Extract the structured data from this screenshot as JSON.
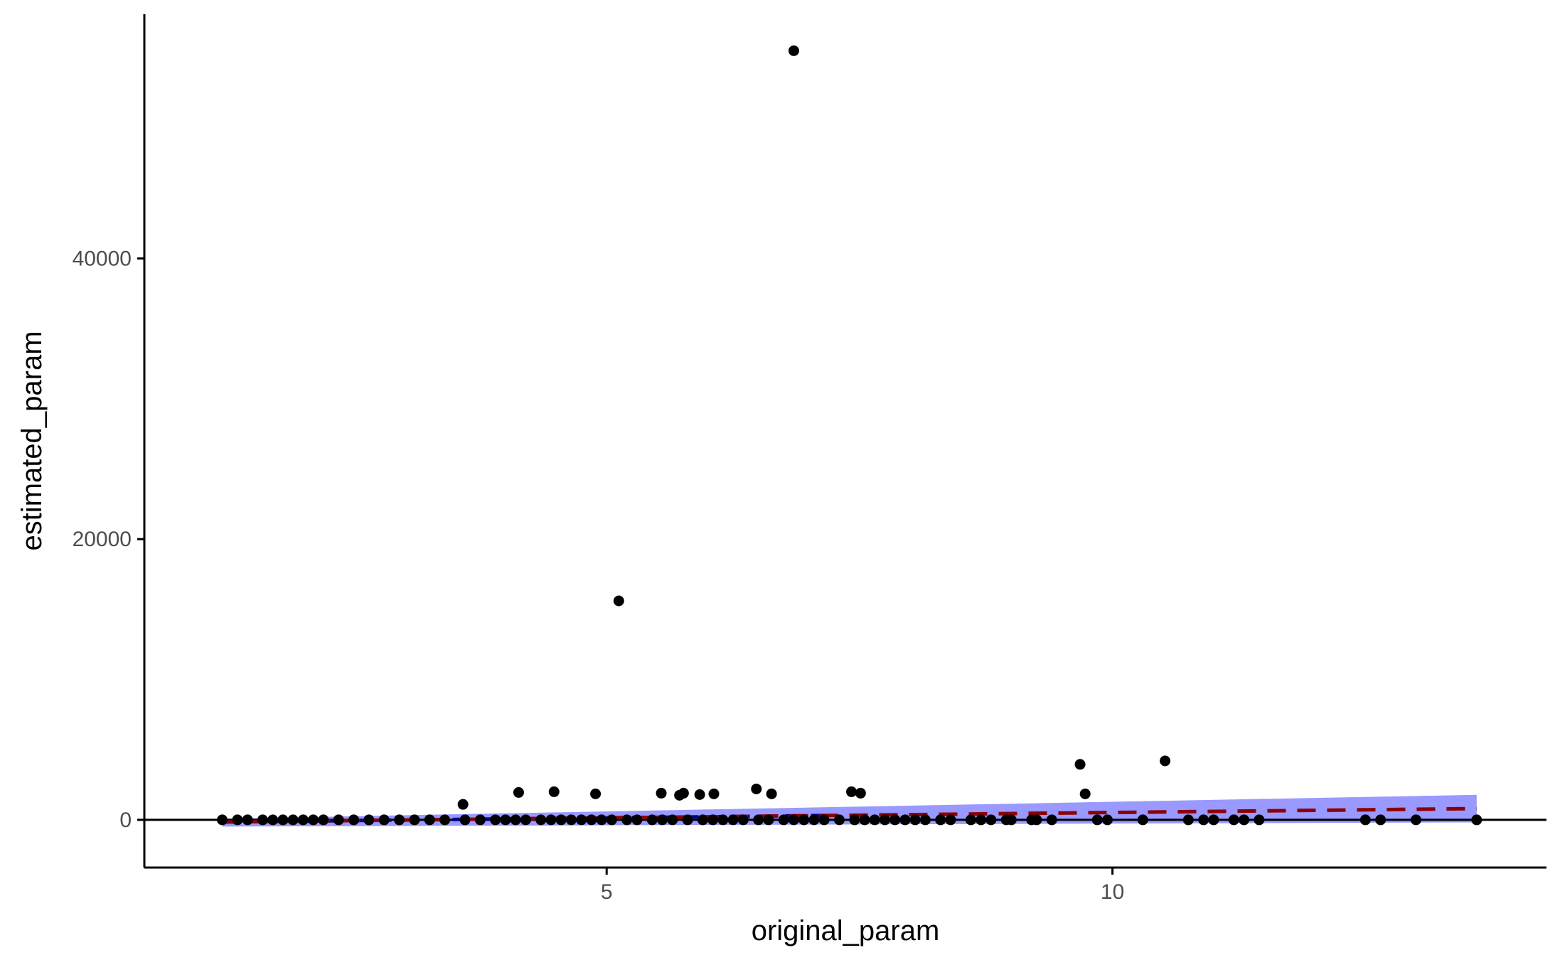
{
  "chart_data": {
    "type": "scatter",
    "title": "",
    "xlabel": "original_param",
    "ylabel": "estimated_param",
    "xlim": [
      0.43,
      14.29
    ],
    "ylim": [
      -3400,
      57400
    ],
    "x_ticks": [
      5,
      10
    ],
    "y_ticks": [
      0,
      20000,
      40000
    ],
    "grid": false,
    "legend": "none",
    "hline": {
      "y": 0,
      "color": "#000000"
    },
    "points": [
      {
        "x": 1.2,
        "y": 0
      },
      {
        "x": 1.35,
        "y": 0
      },
      {
        "x": 1.45,
        "y": 0
      },
      {
        "x": 1.6,
        "y": 0
      },
      {
        "x": 1.7,
        "y": 0
      },
      {
        "x": 1.8,
        "y": 0
      },
      {
        "x": 1.9,
        "y": 0
      },
      {
        "x": 2.0,
        "y": 0
      },
      {
        "x": 2.1,
        "y": 0
      },
      {
        "x": 2.2,
        "y": 0
      },
      {
        "x": 2.35,
        "y": 0
      },
      {
        "x": 2.5,
        "y": 0
      },
      {
        "x": 2.65,
        "y": 0
      },
      {
        "x": 2.8,
        "y": 0
      },
      {
        "x": 2.95,
        "y": 0
      },
      {
        "x": 3.1,
        "y": 0
      },
      {
        "x": 3.25,
        "y": 0
      },
      {
        "x": 3.4,
        "y": 0
      },
      {
        "x": 3.6,
        "y": 0
      },
      {
        "x": 3.75,
        "y": 0
      },
      {
        "x": 3.9,
        "y": 0
      },
      {
        "x": 4.0,
        "y": 0
      },
      {
        "x": 4.1,
        "y": 0
      },
      {
        "x": 4.2,
        "y": 0
      },
      {
        "x": 4.35,
        "y": 0
      },
      {
        "x": 4.45,
        "y": 0
      },
      {
        "x": 4.55,
        "y": 0
      },
      {
        "x": 4.65,
        "y": 0
      },
      {
        "x": 4.75,
        "y": 0
      },
      {
        "x": 4.85,
        "y": 0
      },
      {
        "x": 4.95,
        "y": 0
      },
      {
        "x": 5.05,
        "y": 0
      },
      {
        "x": 5.2,
        "y": 0
      },
      {
        "x": 5.3,
        "y": 0
      },
      {
        "x": 5.45,
        "y": 0
      },
      {
        "x": 5.55,
        "y": 0
      },
      {
        "x": 5.65,
        "y": 0
      },
      {
        "x": 5.8,
        "y": 0
      },
      {
        "x": 5.95,
        "y": 0
      },
      {
        "x": 6.05,
        "y": 0
      },
      {
        "x": 6.15,
        "y": 0
      },
      {
        "x": 6.25,
        "y": 0
      },
      {
        "x": 6.35,
        "y": 0
      },
      {
        "x": 6.5,
        "y": 0
      },
      {
        "x": 6.6,
        "y": 0
      },
      {
        "x": 6.75,
        "y": 0
      },
      {
        "x": 6.85,
        "y": 0
      },
      {
        "x": 6.95,
        "y": 0
      },
      {
        "x": 7.05,
        "y": 0
      },
      {
        "x": 7.15,
        "y": 0
      },
      {
        "x": 7.3,
        "y": 0
      },
      {
        "x": 7.45,
        "y": 0
      },
      {
        "x": 7.55,
        "y": 0
      },
      {
        "x": 7.65,
        "y": 0
      },
      {
        "x": 7.75,
        "y": 0
      },
      {
        "x": 7.85,
        "y": 0
      },
      {
        "x": 7.95,
        "y": 0
      },
      {
        "x": 8.05,
        "y": 0
      },
      {
        "x": 8.15,
        "y": 0
      },
      {
        "x": 8.3,
        "y": 0
      },
      {
        "x": 8.4,
        "y": 0
      },
      {
        "x": 8.6,
        "y": 0
      },
      {
        "x": 8.7,
        "y": 0
      },
      {
        "x": 8.8,
        "y": 0
      },
      {
        "x": 8.95,
        "y": 0
      },
      {
        "x": 9.0,
        "y": 0
      },
      {
        "x": 9.2,
        "y": 0
      },
      {
        "x": 9.25,
        "y": 0
      },
      {
        "x": 9.4,
        "y": 0
      },
      {
        "x": 9.85,
        "y": 0
      },
      {
        "x": 9.95,
        "y": 0
      },
      {
        "x": 10.3,
        "y": 0
      },
      {
        "x": 10.75,
        "y": 0
      },
      {
        "x": 10.9,
        "y": 0
      },
      {
        "x": 11.0,
        "y": 0
      },
      {
        "x": 11.2,
        "y": 0
      },
      {
        "x": 11.3,
        "y": 0
      },
      {
        "x": 11.45,
        "y": 0
      },
      {
        "x": 12.5,
        "y": 0
      },
      {
        "x": 12.65,
        "y": 0
      },
      {
        "x": 13.0,
        "y": 0
      },
      {
        "x": 13.6,
        "y": 0
      },
      {
        "x": 3.58,
        "y": 1100
      },
      {
        "x": 4.13,
        "y": 1950
      },
      {
        "x": 4.48,
        "y": 2000
      },
      {
        "x": 4.89,
        "y": 1850
      },
      {
        "x": 5.12,
        "y": 15600
      },
      {
        "x": 5.54,
        "y": 1900
      },
      {
        "x": 5.72,
        "y": 1750
      },
      {
        "x": 5.76,
        "y": 1900
      },
      {
        "x": 5.92,
        "y": 1800
      },
      {
        "x": 6.06,
        "y": 1850
      },
      {
        "x": 6.48,
        "y": 2200
      },
      {
        "x": 6.63,
        "y": 1850
      },
      {
        "x": 6.85,
        "y": 54800
      },
      {
        "x": 7.42,
        "y": 2000
      },
      {
        "x": 7.51,
        "y": 1900
      },
      {
        "x": 9.68,
        "y": 3950
      },
      {
        "x": 9.73,
        "y": 1850
      },
      {
        "x": 10.52,
        "y": 4200
      }
    ],
    "smooth_line": {
      "x": [
        1.2,
        13.6
      ],
      "y": [
        -150,
        800
      ],
      "color": "#8b0000",
      "style": "dashed"
    },
    "confidence_band": {
      "x": [
        1.2,
        13.6
      ],
      "upper": [
        80,
        1780
      ],
      "lower": [
        -480,
        -180
      ],
      "color": "#0000ff",
      "opacity": 0.4
    },
    "band_midline": {
      "x": [
        1.2,
        7.2
      ],
      "y": [
        -150,
        310
      ],
      "color": "#00008b",
      "style": "dashed"
    }
  }
}
